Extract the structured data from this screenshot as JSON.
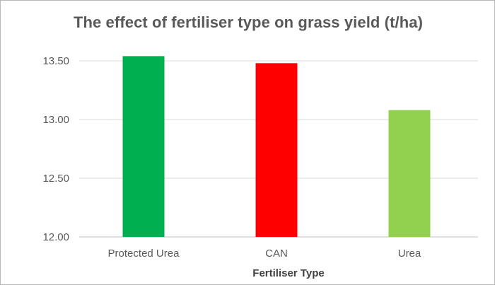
{
  "chart_data": {
    "type": "bar",
    "title": "The effect of fertiliser type on grass yield (t/ha)",
    "xlabel": "Fertiliser Type",
    "ylabel": "",
    "categories": [
      "Protected Urea",
      "CAN",
      "Urea"
    ],
    "values": [
      13.54,
      13.48,
      13.08
    ],
    "bar_colors": [
      "#00b050",
      "#ff0000",
      "#92d050"
    ],
    "ylim": [
      12.0,
      13.5
    ],
    "yticks": [
      "12.00",
      "12.50",
      "13.00",
      "13.50"
    ],
    "grid": true,
    "legend": "none"
  }
}
